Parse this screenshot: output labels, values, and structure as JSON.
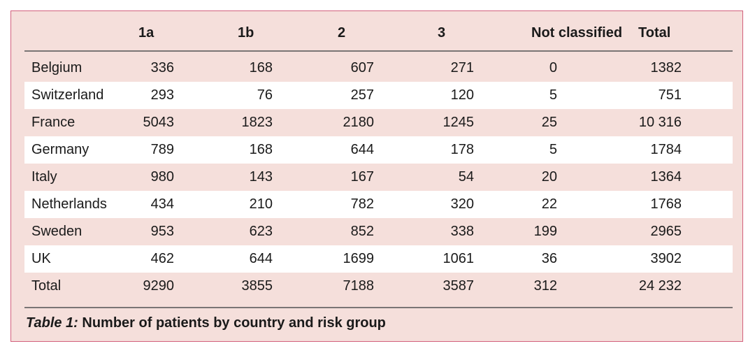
{
  "table": {
    "headers": [
      "",
      "1a",
      "1b",
      "2",
      "3",
      "Not classified",
      "Total"
    ],
    "rows": [
      [
        "Belgium",
        "336",
        "168",
        "607",
        "271",
        "0",
        "1382"
      ],
      [
        "Switzerland",
        "293",
        "76",
        "257",
        "120",
        "5",
        "751"
      ],
      [
        "France",
        "5043",
        "1823",
        "2180",
        "1245",
        "25",
        "10 316"
      ],
      [
        "Germany",
        "789",
        "168",
        "644",
        "178",
        "5",
        "1784"
      ],
      [
        "Italy",
        "980",
        "143",
        "167",
        "54",
        "20",
        "1364"
      ],
      [
        "Netherlands",
        "434",
        "210",
        "782",
        "320",
        "22",
        "1768"
      ],
      [
        "Sweden",
        "953",
        "623",
        "852",
        "338",
        "199",
        "2965"
      ],
      [
        "UK",
        "462",
        "644",
        "1699",
        "1061",
        "36",
        "3902"
      ],
      [
        "Total",
        "9290",
        "3855",
        "7188",
        "3587",
        "312",
        "24 232"
      ]
    ]
  },
  "caption": {
    "label": "Table 1:",
    "text": " Number of patients by country and risk group"
  },
  "colors": {
    "background": "#f5dfdb",
    "border": "#d2607c",
    "stripe": "#ffffff"
  }
}
